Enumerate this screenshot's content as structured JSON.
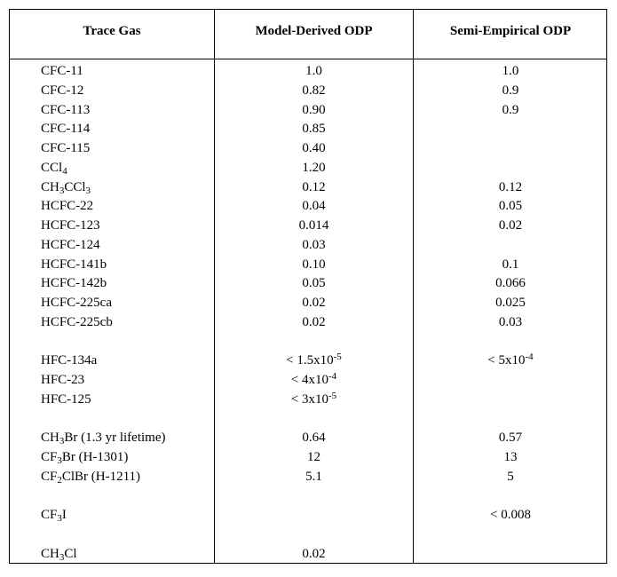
{
  "headers": {
    "col1": "Trace Gas",
    "col2": "Model-Derived ODP",
    "col3": "Semi-Empirical ODP"
  },
  "rows": [
    {
      "gas": "CFC-11",
      "model": "1.0",
      "semi": "1.0"
    },
    {
      "gas": "CFC-12",
      "model": "0.82",
      "semi": "0.9"
    },
    {
      "gas": "CFC-113",
      "model": "0.90",
      "semi": "0.9"
    },
    {
      "gas": "CFC-114",
      "model": "0.85",
      "semi": ""
    },
    {
      "gas": "CFC-115",
      "model": "0.40",
      "semi": ""
    },
    {
      "gas": "CCl<sub>4</sub>",
      "model": "1.20",
      "semi": ""
    },
    {
      "gas": "CH<sub>3</sub>CCl<sub>3</sub>",
      "model": "0.12",
      "semi": "0.12"
    },
    {
      "gas": "HCFC-22",
      "model": "0.04",
      "semi": "0.05"
    },
    {
      "gas": "HCFC-123",
      "model": "0.014",
      "semi": "0.02"
    },
    {
      "gas": "HCFC-124",
      "model": "0.03",
      "semi": ""
    },
    {
      "gas": "HCFC-141b",
      "model": "0.10",
      "semi": "0.1"
    },
    {
      "gas": "HCFC-142b",
      "model": "0.05",
      "semi": "0.066"
    },
    {
      "gas": "HCFC-225ca",
      "model": "0.02",
      "semi": "0.025"
    },
    {
      "gas": "HCFC-225cb",
      "model": "0.02",
      "semi": "0.03"
    },
    {
      "spacer": true
    },
    {
      "gas": "HFC-134a",
      "model": "&lt; 1.5x10<sup>-5</sup>",
      "semi": "&lt; 5x10<sup>-4</sup>"
    },
    {
      "gas": "HFC-23",
      "model": "&lt; 4x10<sup>-4</sup>",
      "semi": ""
    },
    {
      "gas": "HFC-125",
      "model": "&lt; 3x10<sup>-5</sup>",
      "semi": ""
    },
    {
      "spacer": true
    },
    {
      "gas": "CH<sub>3</sub>Br (1.3 yr lifetime)",
      "model": "0.64",
      "semi": "0.57"
    },
    {
      "gas": "CF<sub>3</sub>Br (H-1301)",
      "model": "12",
      "semi": "13"
    },
    {
      "gas": "CF<sub>2</sub>ClBr (H-1211)",
      "model": "5.1",
      "semi": "5"
    },
    {
      "spacer": true
    },
    {
      "gas": "CF<sub>3</sub>I",
      "model": "",
      "semi": "&lt; 0.008"
    },
    {
      "spacer": true
    },
    {
      "gas": "CH<sub>3</sub>Cl",
      "model": "0.02",
      "semi": ""
    }
  ]
}
